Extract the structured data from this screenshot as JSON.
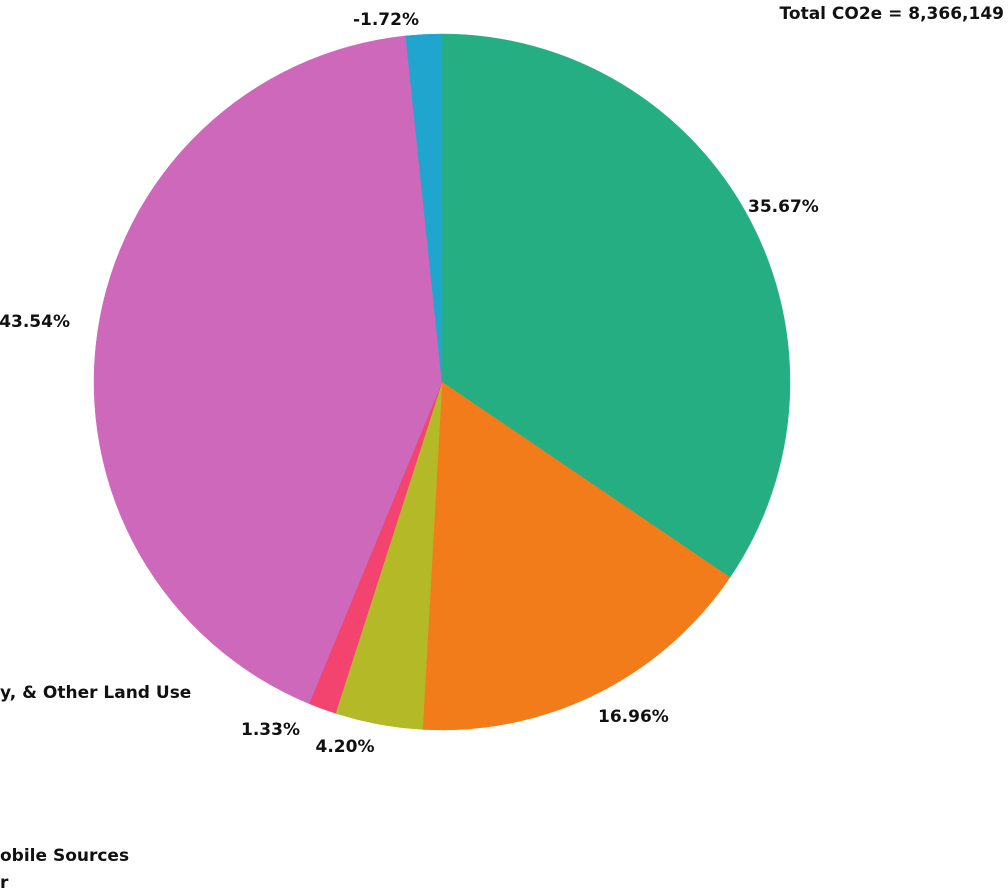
{
  "total_label": "Total CO2e = 8,366,149",
  "left_fragments": {
    "land_use": "y, & Other Land Use",
    "mobile": "obile Sources",
    "last": "r"
  },
  "chart_data": {
    "type": "pie",
    "start_angle_deg": 0,
    "direction": "clockwise",
    "slices": [
      {
        "value": 35.67,
        "label": "35.67%",
        "color": "#25AE81"
      },
      {
        "value": 16.96,
        "label": "16.96%",
        "color": "#F27C1A"
      },
      {
        "value": 4.2,
        "label": "4.20%",
        "color": "#B4B928"
      },
      {
        "value": 1.33,
        "label": "1.33%",
        "color": "#F3436F"
      },
      {
        "value": 43.54,
        "label": "43.54%",
        "color": "#CE68BB"
      },
      {
        "value": -1.72,
        "label": "-1.72%",
        "color": "#20A6CE"
      }
    ]
  }
}
